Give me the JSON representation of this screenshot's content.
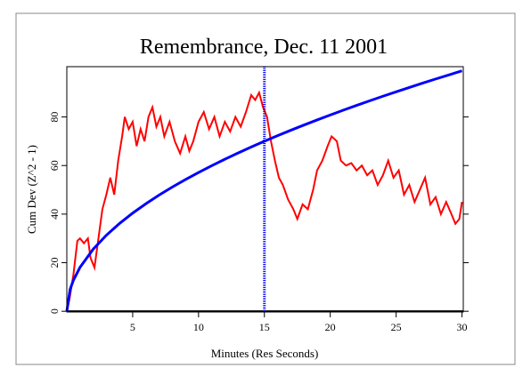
{
  "chart_data": {
    "type": "line",
    "title": "Remembrance, Dec. 11 2001",
    "x_label": "Minutes (Res Seconds)",
    "y_label": "Cum Dev (Z^2 - 1)",
    "xlim": [
      0,
      30.1
    ],
    "ylim": [
      -0.3,
      100.7
    ],
    "xticks": [
      5,
      10,
      15,
      20,
      25,
      30
    ],
    "yticks": [
      0,
      20,
      40,
      60,
      80
    ],
    "marker_x": 15,
    "marker_color": "#0000ff",
    "baseline_y": 0,
    "series": [
      {
        "color": "#ff0000",
        "x": [
          0,
          0.2,
          0.5,
          0.8,
          1.0,
          1.3,
          1.6,
          1.8,
          2.1,
          2.4,
          2.7,
          3.0,
          3.3,
          3.6,
          3.9,
          4.2,
          4.4,
          4.7,
          5.0,
          5.3,
          5.6,
          5.9,
          6.2,
          6.5,
          6.8,
          7.1,
          7.4,
          7.8,
          8.2,
          8.6,
          9.0,
          9.3,
          9.6,
          10.0,
          10.4,
          10.8,
          11.2,
          11.6,
          12.0,
          12.4,
          12.8,
          13.2,
          13.6,
          14.0,
          14.3,
          14.6,
          14.9,
          15.2,
          15.5,
          15.8,
          16.1,
          16.4,
          16.8,
          17.2,
          17.5,
          17.9,
          18.3,
          18.7,
          19.0,
          19.4,
          19.8,
          20.1,
          20.5,
          20.8,
          21.2,
          21.6,
          22.0,
          22.4,
          22.8,
          23.2,
          23.6,
          24.0,
          24.4,
          24.8,
          25.2,
          25.6,
          26.0,
          26.4,
          26.8,
          27.2,
          27.6,
          28.0,
          28.4,
          28.8,
          29.2,
          29.5,
          29.8,
          30.0
        ],
        "values": [
          0,
          5,
          15,
          29,
          30,
          28,
          30,
          22,
          18,
          30,
          42,
          48,
          55,
          48,
          62,
          72,
          80,
          75,
          78,
          68,
          75,
          70,
          80,
          84,
          76,
          80,
          72,
          78,
          70,
          65,
          72,
          66,
          70,
          78,
          82,
          75,
          80,
          72,
          78,
          74,
          80,
          76,
          82,
          89,
          87,
          90,
          84,
          80,
          70,
          62,
          55,
          52,
          46,
          42,
          38,
          44,
          42,
          50,
          58,
          62,
          68,
          72,
          70,
          62,
          60,
          61,
          58,
          60,
          56,
          58,
          52,
          56,
          62,
          55,
          58,
          48,
          52,
          45,
          50,
          55,
          44,
          47,
          40,
          45,
          40,
          36,
          38,
          45
        ]
      },
      {
        "color": "#0000ff",
        "x": [
          0,
          0.25,
          0.5,
          1,
          2,
          3,
          4,
          5,
          6,
          7,
          8,
          9,
          10,
          11,
          12,
          13,
          14,
          15,
          16,
          17,
          18,
          19,
          20,
          21,
          22,
          23,
          24,
          25,
          26,
          27,
          28,
          29,
          30
        ],
        "values": [
          0,
          9.04,
          12.78,
          18.07,
          25.56,
          31.3,
          36.14,
          40.41,
          44.26,
          47.81,
          51.11,
          54.21,
          57.14,
          59.93,
          62.6,
          65.15,
          67.61,
          69.99,
          72.28,
          74.51,
          76.67,
          78.77,
          80.81,
          82.81,
          84.76,
          86.66,
          88.53,
          90.35,
          92.14,
          93.89,
          95.62,
          97.31,
          98.97
        ]
      }
    ]
  }
}
